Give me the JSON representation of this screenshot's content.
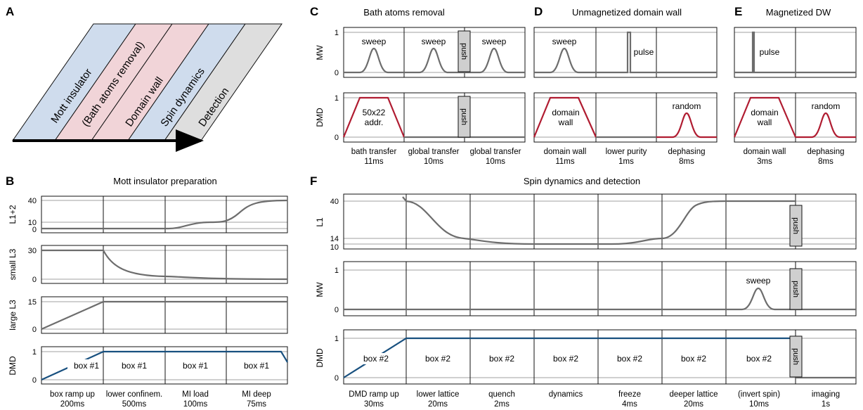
{
  "colors": {
    "gray": "#6d6d6d",
    "red": "#b01c31",
    "blue": "#18507f",
    "panelA_blue": "#cfdced",
    "panelA_pink": "#f1d4d8",
    "panelA_gray": "#dedede",
    "gridline": "#b5b5b5",
    "push_fill": "#cfcfcf"
  },
  "panel_letters": {
    "A": "A",
    "B": "B",
    "C": "C",
    "D": "D",
    "E": "E",
    "F": "F"
  },
  "panelA": {
    "stripes": [
      "Mott insulator",
      "(Bath atoms removal)",
      "Domain wall",
      "Spin dynamics",
      "Detection"
    ]
  },
  "panelB": {
    "title": "Mott insulator preparation",
    "rows": [
      {
        "label": "L1+2",
        "ticks": [
          "40",
          "10",
          "0"
        ]
      },
      {
        "label": "small L3",
        "ticks": [
          "30",
          "0"
        ]
      },
      {
        "label": "large L3",
        "ticks": [
          "15",
          "0"
        ]
      },
      {
        "label": "DMD",
        "ticks": [
          "1",
          "0"
        ]
      }
    ],
    "box_labels": [
      "box #1",
      "box #1",
      "box #1",
      "box #1"
    ],
    "steps": [
      [
        "box ramp up",
        "200ms"
      ],
      [
        "lower confinem.",
        "500ms"
      ],
      [
        "MI load",
        "100ms"
      ],
      [
        "MI deep",
        "75ms"
      ]
    ]
  },
  "panelC": {
    "title": "Bath atoms removal",
    "rows": [
      {
        "label": "MW",
        "ticks": [
          "1",
          "0"
        ]
      },
      {
        "label": "DMD",
        "ticks": [
          "1",
          "0"
        ]
      }
    ],
    "mw_labels": [
      "sweep",
      "sweep",
      "sweep"
    ],
    "dmd_label": [
      "50x22",
      "addr."
    ],
    "push": "push",
    "steps": [
      [
        "bath transfer",
        "11ms"
      ],
      [
        "global transfer",
        "10ms"
      ],
      [
        "global transfer",
        "10ms"
      ]
    ]
  },
  "panelD": {
    "title": "Unmagnetized domain wall",
    "rows": [
      {
        "label": "MW",
        "ticks": [
          "1",
          "0"
        ]
      },
      {
        "label": "DMD",
        "ticks": [
          "1",
          "0"
        ]
      }
    ],
    "mw_labels": [
      "sweep",
      "pulse"
    ],
    "dmd_labels": [
      [
        "domain",
        "wall"
      ],
      [
        "random"
      ]
    ],
    "steps": [
      [
        "domain wall",
        "11ms"
      ],
      [
        "lower purity",
        "1ms"
      ],
      [
        "dephasing",
        "8ms"
      ]
    ]
  },
  "panelE": {
    "title": "Magnetized DW",
    "rows": [
      {
        "label": "MW",
        "ticks": [
          "1",
          "0"
        ]
      },
      {
        "label": "DMD",
        "ticks": [
          "1",
          "0"
        ]
      }
    ],
    "mw_labels": [
      "pulse"
    ],
    "dmd_labels": [
      [
        "domain",
        "wall"
      ],
      [
        "random"
      ]
    ],
    "steps": [
      [
        "domain wall",
        "3ms"
      ],
      [
        "dephasing",
        "8ms"
      ]
    ]
  },
  "panelF": {
    "title": "Spin dynamics and detection",
    "rows": [
      {
        "label": "L1",
        "ticks": [
          "40",
          "14",
          "10"
        ]
      },
      {
        "label": "MW",
        "ticks": [
          "1",
          "0"
        ]
      },
      {
        "label": "DMD",
        "ticks": [
          "1",
          "0"
        ]
      }
    ],
    "mw_label": "sweep",
    "push": "push",
    "box_labels": [
      "box #2",
      "box #2",
      "box #2",
      "box #2",
      "box #2",
      "box #2",
      "box #2"
    ],
    "steps": [
      [
        "DMD ramp up",
        "30ms"
      ],
      [
        "lower lattice",
        "20ms"
      ],
      [
        "quench",
        "2ms"
      ],
      [
        "dynamics",
        ""
      ],
      [
        "freeze",
        "4ms"
      ],
      [
        "deeper lattice",
        "20ms"
      ],
      [
        "(invert spin)",
        "10ms"
      ],
      [
        "imaging",
        "1s"
      ]
    ]
  }
}
